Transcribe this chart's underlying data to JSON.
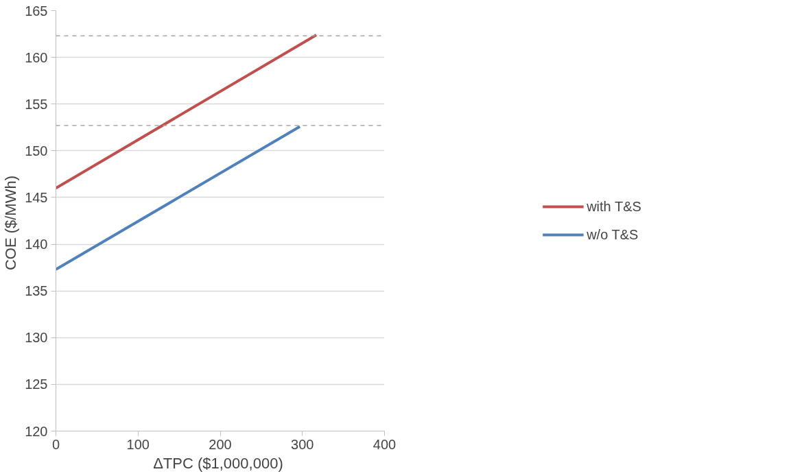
{
  "chart_data": {
    "type": "line",
    "xlabel": "ΔTPC  ($1,000,000)",
    "ylabel": "COE  ($/MWh)",
    "series": [
      {
        "name": "with T&S",
        "color": "#c0504d",
        "x": [
          0,
          317
        ],
        "values": [
          146.0,
          162.4
        ]
      },
      {
        "name": "w/o T&S",
        "color": "#4f81bd",
        "x": [
          0,
          297
        ],
        "values": [
          137.3,
          152.6
        ]
      }
    ],
    "xlim": [
      0,
      400
    ],
    "xticks": [
      0,
      100,
      200,
      300,
      400
    ],
    "ylim": [
      120,
      165
    ],
    "yticks": [
      120,
      125,
      130,
      135,
      140,
      145,
      150,
      155,
      160,
      165
    ],
    "ref_lines": [
      {
        "axis": "y",
        "value": 162.3,
        "color": "#a6a6a6",
        "line_style": "dashed"
      },
      {
        "axis": "y",
        "value": 152.7,
        "color": "#a6a6a6",
        "line_style": "dashed"
      }
    ],
    "grid": "y",
    "legend": "right",
    "line_style": "solid",
    "marker": "none"
  }
}
